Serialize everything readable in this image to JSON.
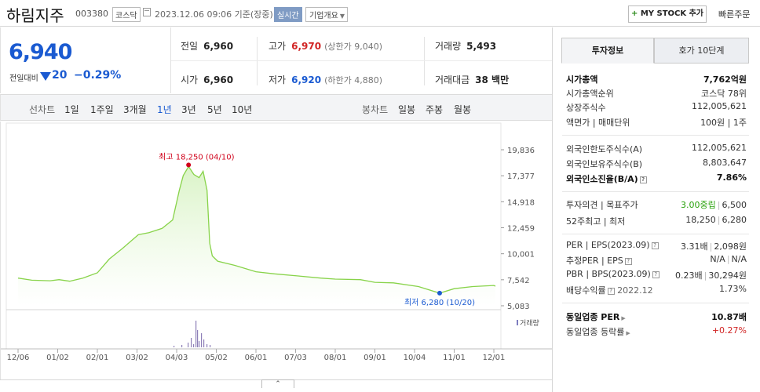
{
  "header": {
    "name": "하림지주",
    "code": "003380",
    "market": "코스닥",
    "datetime": "2023.12.06 09:06  기준(장중)",
    "realtime": "실시간",
    "corp_info": "기업개요",
    "my_stock": "MY STOCK 추가",
    "quick_order": "빠른주문"
  },
  "price": {
    "current": "6,940",
    "prev_label": "전일대비",
    "change": "20",
    "change_pct": "−0.29%",
    "color": "#1a5ad1"
  },
  "stats": {
    "prev_close_label": "전일",
    "prev_close": "6,960",
    "high_label": "고가",
    "high": "6,970",
    "upper_limit": "(상한가 9,040)",
    "volume_label": "거래량",
    "volume": "5,493",
    "open_label": "시가",
    "open": "6,960",
    "low_label": "저가",
    "low": "6,920",
    "lower_limit": "(하한가 4,880)",
    "trade_value_label": "거래대금",
    "trade_value": "38 백만"
  },
  "tabs": {
    "line_label": "선차트",
    "periods": [
      "1일",
      "1주일",
      "3개월",
      "1년",
      "3년",
      "5년",
      "10년"
    ],
    "active": "1년",
    "candle_label": "봉차트",
    "candles": [
      "일봉",
      "주봉",
      "월봉"
    ]
  },
  "chart_data": {
    "type": "area",
    "yticks": [
      "19,836",
      "17,377",
      "14,918",
      "12,459",
      "10,001",
      "7,542",
      "5,083"
    ],
    "ylim": [
      5083,
      19836
    ],
    "xticks": [
      "12/06",
      "01/02",
      "02/01",
      "03/02",
      "04/03",
      "05/02",
      "06/01",
      "07/03",
      "08/01",
      "09/01",
      "10/04",
      "11/01",
      "12/01"
    ],
    "high_annotation": "최고 18,250 (04/10)",
    "low_annotation": "최저 6,280 (10/20)",
    "volume_label": "거래량",
    "line_color": "#88d34a",
    "fill_color": "#d8f3c4",
    "high_color": "#d0021b",
    "low_color": "#1a5ad1",
    "series": [
      {
        "x": "12/06",
        "y": 7700
      },
      {
        "x": "12/15",
        "y": 7500
      },
      {
        "x": "12/27",
        "y": 7450
      },
      {
        "x": "01/02",
        "y": 7550
      },
      {
        "x": "01/10",
        "y": 7400
      },
      {
        "x": "01/20",
        "y": 7700
      },
      {
        "x": "02/01",
        "y": 8200
      },
      {
        "x": "02/10",
        "y": 9500
      },
      {
        "x": "02/20",
        "y": 10500
      },
      {
        "x": "03/02",
        "y": 11800
      },
      {
        "x": "03/10",
        "y": 12000
      },
      {
        "x": "03/20",
        "y": 12400
      },
      {
        "x": "03/28",
        "y": 13200
      },
      {
        "x": "04/03",
        "y": 16000
      },
      {
        "x": "04/06",
        "y": 17400
      },
      {
        "x": "04/10",
        "y": 18250
      },
      {
        "x": "04/14",
        "y": 17500
      },
      {
        "x": "04/18",
        "y": 17200
      },
      {
        "x": "04/21",
        "y": 17800
      },
      {
        "x": "04/24",
        "y": 16000
      },
      {
        "x": "04/26",
        "y": 11000
      },
      {
        "x": "04/28",
        "y": 9800
      },
      {
        "x": "05/02",
        "y": 9300
      },
      {
        "x": "05/15",
        "y": 8900
      },
      {
        "x": "06/01",
        "y": 8300
      },
      {
        "x": "06/15",
        "y": 8100
      },
      {
        "x": "07/03",
        "y": 7900
      },
      {
        "x": "07/20",
        "y": 7700
      },
      {
        "x": "08/01",
        "y": 7600
      },
      {
        "x": "08/20",
        "y": 7550
      },
      {
        "x": "09/01",
        "y": 7300
      },
      {
        "x": "09/15",
        "y": 7250
      },
      {
        "x": "10/04",
        "y": 6900
      },
      {
        "x": "10/20",
        "y": 6280
      },
      {
        "x": "11/01",
        "y": 6700
      },
      {
        "x": "11/15",
        "y": 6900
      },
      {
        "x": "12/01",
        "y": 7000
      },
      {
        "x": "12/06",
        "y": 6940
      }
    ]
  },
  "panel": {
    "tab_active": "투자정보",
    "tab_other": "호가 10단계",
    "rows1": [
      {
        "k": "시가총액",
        "v": "7,762억원",
        "bold": true
      },
      {
        "k": "시가총액순위",
        "v": "코스닥 78위"
      },
      {
        "k": "상장주식수",
        "v": "112,005,621"
      },
      {
        "k": "액면가 | 매매단위",
        "v": "100원 | 1주"
      }
    ],
    "rows2": [
      {
        "k": "외국인한도주식수(A)",
        "v": "112,005,621"
      },
      {
        "k": "외국인보유주식수(B)",
        "v": "8,803,647"
      },
      {
        "k": "외국인소진율(B/A)",
        "v": "7.86%",
        "bold": true
      }
    ],
    "opinion_k": "투자의견 | 목표주가",
    "opinion_v": "3.00중립",
    "target_v": "6,500",
    "w52_k": "52주최고 | 최저",
    "w52_hi": "18,250",
    "w52_lo": "6,280",
    "per_k": "PER | EPS(2023.09)",
    "per_v": "3.31배",
    "eps_v": "2,098원",
    "eper_k": "추정PER | EPS",
    "eper_v": "N/A",
    "eeps_v": "N/A",
    "pbr_k": "PBR | BPS(2023.09)",
    "pbr_v": "0.23배",
    "bps_v": "30,294원",
    "div_k": "배당수익률",
    "div_date": "2022.12",
    "div_v": "1.73%",
    "ind_per_k": "동일업종 PER",
    "ind_per_v": "10.87배",
    "ind_chg_k": "동일업종 등락률",
    "ind_chg_v": "+0.27%"
  }
}
